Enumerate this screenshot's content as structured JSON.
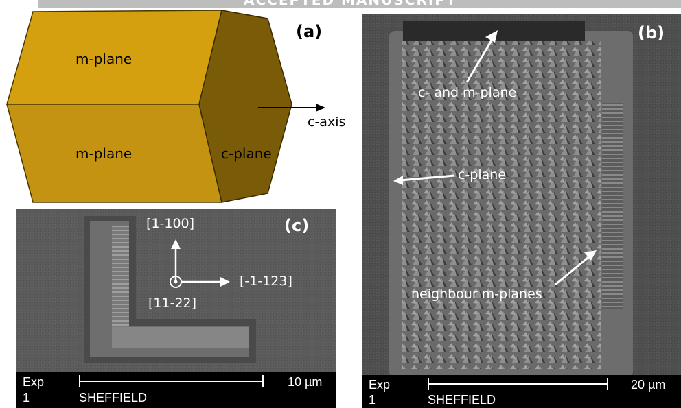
{
  "header": {
    "banner_text": "ACCEPTED MANUSCRIPT"
  },
  "panel_a": {
    "tag": "(a)",
    "top_face_label": "m-plane",
    "front_face_label": "m-plane",
    "end_face_label": "c-plane",
    "axis_label": "c-axis",
    "colors": {
      "top_face": "#d4a010",
      "front_face": "#c39311",
      "end_face": "#7a5c08"
    }
  },
  "panel_b": {
    "tag": "(b)",
    "annotations": [
      "c- and m-plane",
      "c-plane",
      "neighbour m-planes"
    ],
    "scalebar": {
      "exp": "Exp",
      "exp_num": "1",
      "facility": "SHEFFIELD",
      "length": "20 µm"
    }
  },
  "panel_c": {
    "tag": "(c)",
    "direction_up": "[1-100]",
    "direction_right": "[-1-123]",
    "direction_out": "[11-22]",
    "scalebar": {
      "exp": "Exp",
      "exp_num": "1",
      "facility": "SHEFFIELD",
      "length": "10 µm"
    }
  }
}
